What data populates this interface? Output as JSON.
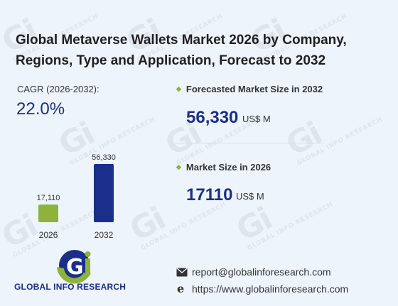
{
  "title": "Global Metaverse Wallets Market 2026 by Company, Regions, Type and Application, Forecast to 2032",
  "cagr": {
    "label": "CAGR (2026-2032):",
    "value": "22.0%"
  },
  "chart_data": {
    "type": "bar",
    "categories": [
      "2026",
      "2032"
    ],
    "values": [
      17110,
      56330
    ],
    "value_labels": [
      "17,110",
      "56,330"
    ],
    "colors": [
      "#8db33a",
      "#1a2f8a"
    ],
    "title": "",
    "xlabel": "",
    "ylabel": ""
  },
  "forecast": {
    "label": "Forecasted Market Size in 2032",
    "value": "56,330",
    "unit": "US$ M"
  },
  "current": {
    "label": "Market Size in 2026",
    "value": "17110",
    "unit": "US$ M"
  },
  "brand": {
    "logo_text": "GLOBAL INFO RESEARCH"
  },
  "contact": {
    "email": "report@globalinforesearch.com",
    "website": "https://www.globalinforesearch.com"
  },
  "watermark": "GLOBAL INFO RESEARCH"
}
